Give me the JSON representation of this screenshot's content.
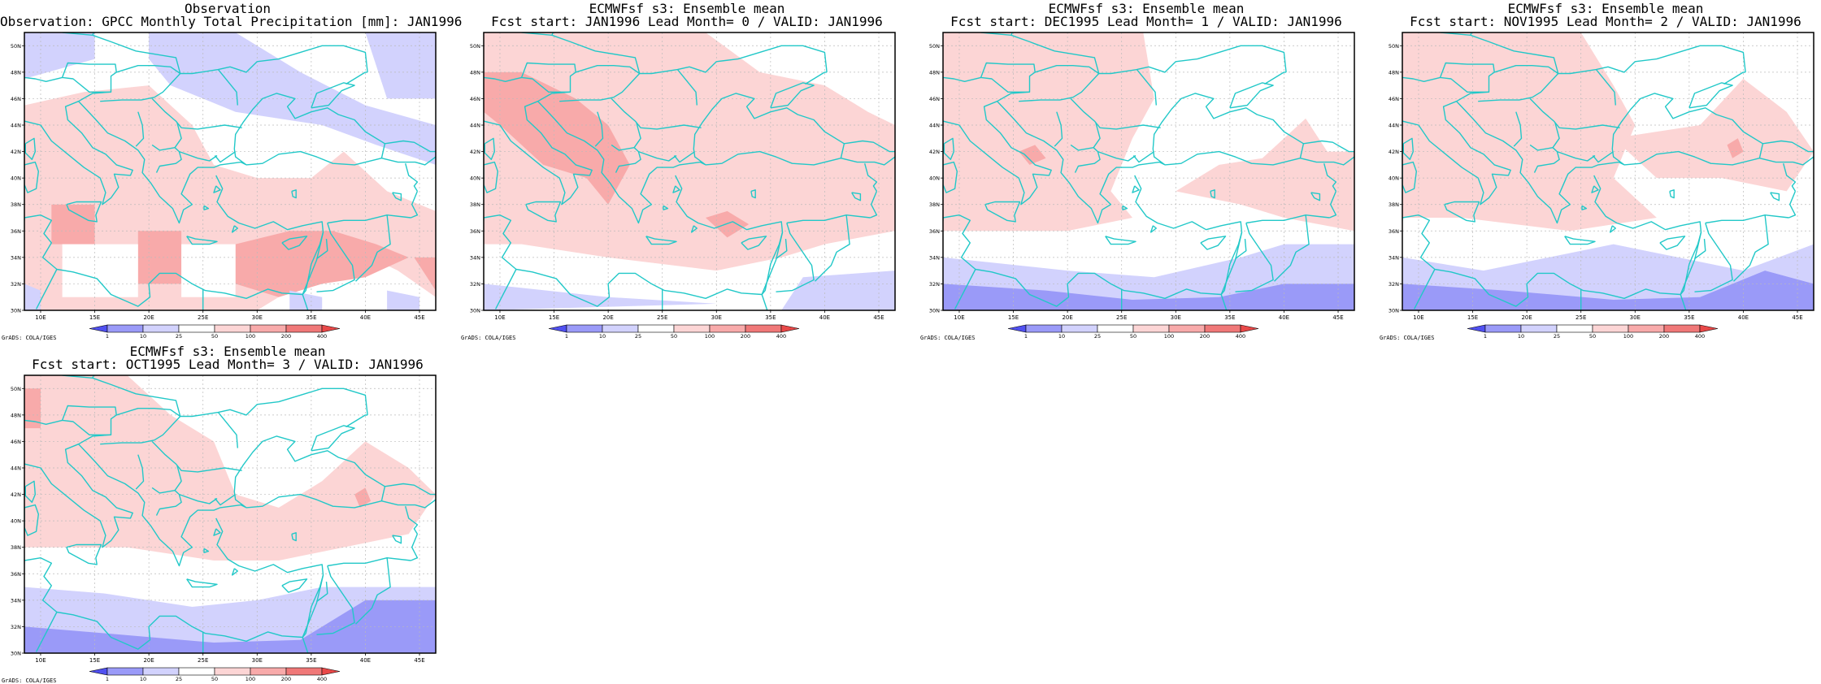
{
  "credit": "GrADS: COLA/IGES",
  "colorbar": {
    "labels": [
      "1",
      "10",
      "25",
      "50",
      "100",
      "200",
      "400"
    ],
    "colors": [
      "#5050f0",
      "#9a9af8",
      "#d2d2fd",
      "#ffffff",
      "#fcd5d5",
      "#f8aaaa",
      "#f07878",
      "#e84848"
    ]
  },
  "map_axes": {
    "lon_labels": [
      "10E",
      "15E",
      "20E",
      "25E",
      "30E",
      "35E",
      "40E",
      "45E"
    ],
    "lat_labels": [
      "30N",
      "32N",
      "34N",
      "36N",
      "38N",
      "40N",
      "42N",
      "44N",
      "46N",
      "48N",
      "50N"
    ]
  },
  "colors": {
    "coastline": "#22c8c8",
    "grid": "#bbbbbb",
    "frame": "#000000"
  },
  "panels": [
    {
      "title1": "Observation",
      "title2": "Observation: GPCC Monthly Total Precipitation [mm]: JAN1996"
    },
    {
      "title1": "ECMWFsf s3: Ensemble mean",
      "title2": "Fcst start: JAN1996  Lead Month= 0 / VALID: JAN1996"
    },
    {
      "title1": "ECMWFsf s3: Ensemble mean",
      "title2": "Fcst start: DEC1995  Lead Month= 1 / VALID: JAN1996"
    },
    {
      "title1": "ECMWFsf s3: Ensemble mean",
      "title2": "Fcst start: NOV1995  Lead Month= 2 / VALID: JAN1996"
    },
    {
      "title1": "ECMWFsf s3: Ensemble mean",
      "title2": "Fcst start: OCT1995  Lead Month= 3 / VALID: JAN1996"
    }
  ]
}
